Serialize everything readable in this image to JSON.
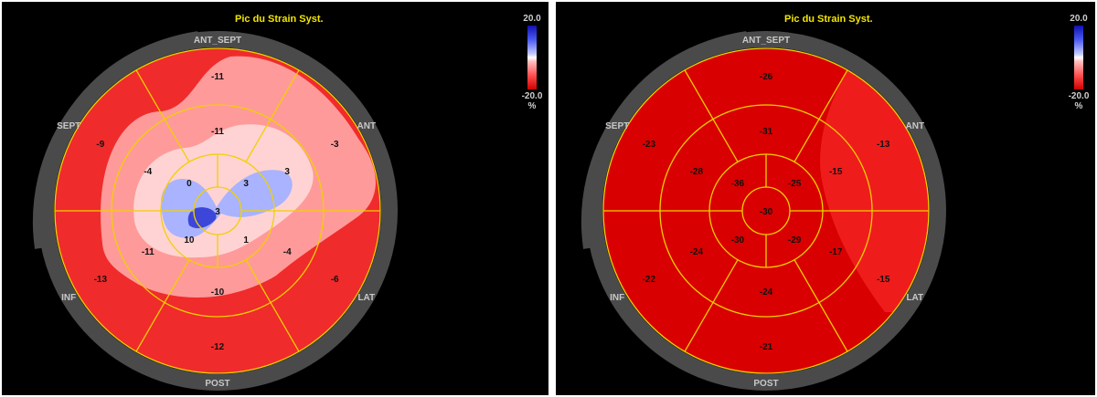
{
  "panels": [
    {
      "title": "Pic du Strain Syst.",
      "scale": {
        "max": "20.0",
        "min": "-20.0",
        "unit": "%"
      },
      "walls": {
        "ant_sept": "ANT_SEPT",
        "ant": "ANT",
        "lat": "LAT",
        "post": "POST",
        "inf": "INF",
        "sept": "SEPT"
      },
      "segments": {
        "basal": [
          "-11",
          "-3",
          "-6",
          "-12",
          "-13",
          "-9"
        ],
        "mid": [
          "-11",
          "3",
          "-4",
          "-10",
          "-11",
          "-4"
        ],
        "apical": [
          "3",
          "1",
          "10",
          "0"
        ],
        "apex": "3"
      },
      "colors": {
        "outer": "#f02b2b",
        "ring": "#ff9a9a",
        "inner": "#ffd3d3",
        "blue": "#a9b3ff",
        "deep_blue": "#3c46d8"
      }
    },
    {
      "title": "Pic du Strain Syst.",
      "scale": {
        "max": "20.0",
        "min": "-20.0",
        "unit": "%"
      },
      "walls": {
        "ant_sept": "ANT_SEPT",
        "ant": "ANT",
        "lat": "LAT",
        "post": "POST",
        "inf": "INF",
        "sept": "SEPT"
      },
      "segments": {
        "basal": [
          "-26",
          "-13",
          "-15",
          "-21",
          "-22",
          "-23"
        ],
        "mid": [
          "-31",
          "-15",
          "-17",
          "-24",
          "-24",
          "-28"
        ],
        "apical": [
          "-25",
          "-29",
          "-30",
          "-36"
        ],
        "apex": "-30"
      },
      "colors": {
        "fill": "#d80000",
        "lateral": "#ef1c1c"
      }
    }
  ]
}
